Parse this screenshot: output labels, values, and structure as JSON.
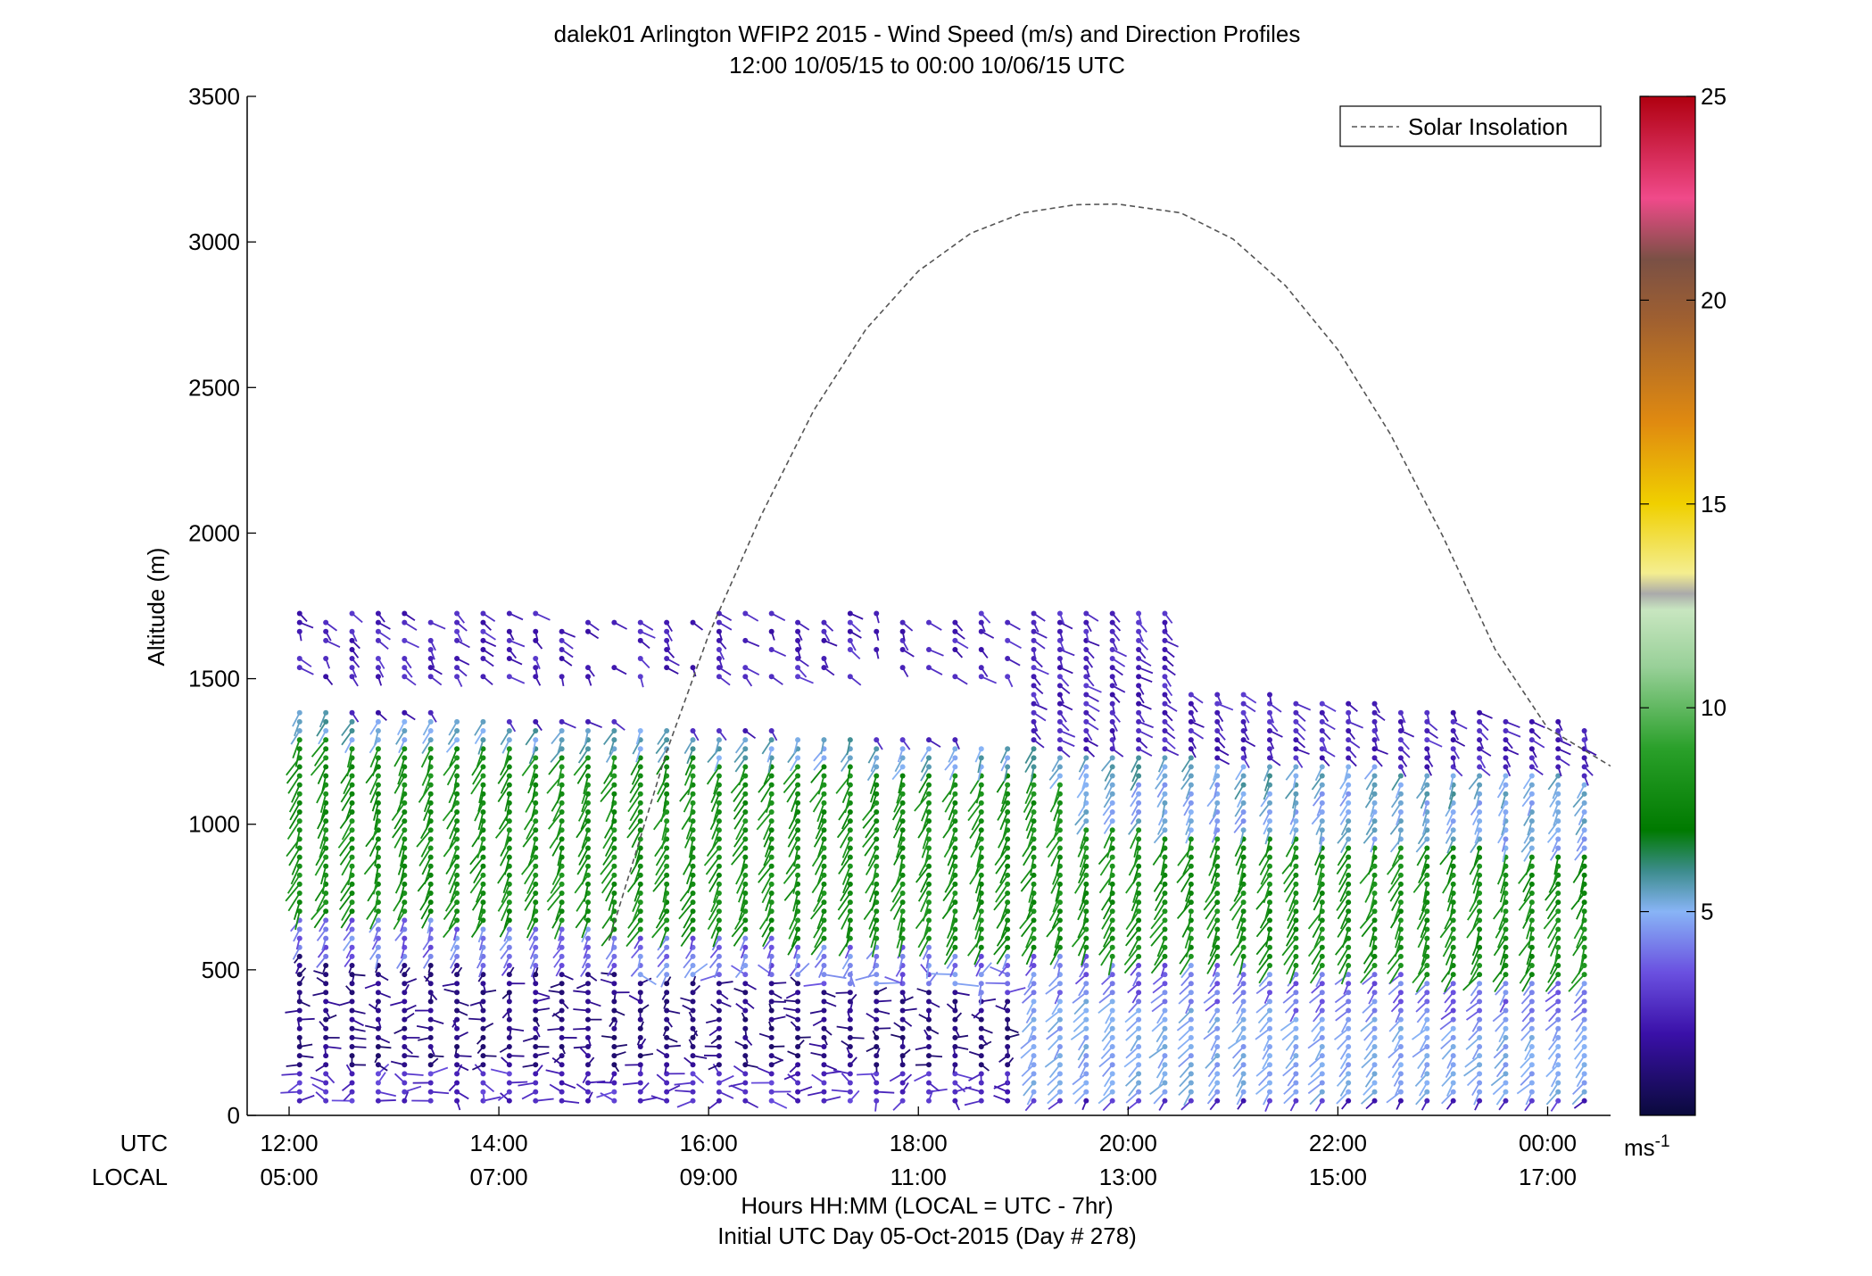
{
  "chart_data": {
    "type": "scatter",
    "title": "dalek01 Arlington WFIP2 2015 - Wind Speed (m/s) and Direction Profiles",
    "subtitle": "12:00 10/05/15 to 00:00 10/06/15  UTC",
    "ylabel": "Altitude (m)",
    "xlabel": "Hours HH:MM  (LOCAL = UTC - 7hr)",
    "xlabel2": "Initial UTC Day 05-Oct-2015 (Day # 278)",
    "row_labels": {
      "utc": "UTC",
      "local": "LOCAL"
    },
    "xlim_hours_utc": [
      11.6,
      24.6
    ],
    "ylim": [
      0,
      3500
    ],
    "y_ticks": [
      0,
      500,
      1000,
      1500,
      2000,
      2500,
      3000,
      3500
    ],
    "y_tick_labels": [
      "0",
      "500",
      "1000",
      "1500",
      "2000",
      "2500",
      "3000",
      "3500"
    ],
    "x_ticks_hours_utc": [
      12,
      14,
      16,
      18,
      20,
      22,
      24
    ],
    "x_tick_labels_utc": [
      "12:00",
      "14:00",
      "16:00",
      "18:00",
      "20:00",
      "22:00",
      "00:00"
    ],
    "x_tick_labels_local": [
      "05:00",
      "07:00",
      "09:00",
      "11:00",
      "13:00",
      "15:00",
      "17:00"
    ],
    "legend": {
      "entries": [
        "Solar Insolation"
      ],
      "position": "top-right"
    },
    "colorbar": {
      "range": [
        0,
        25
      ],
      "ticks": [
        5,
        10,
        15,
        20,
        25
      ],
      "tick_labels": [
        "5",
        "10",
        "15",
        "20",
        "25"
      ],
      "unit_label": "ms",
      "unit_exponent": "-1",
      "stops": [
        {
          "v": 0,
          "c": "#0a0a3c"
        },
        {
          "v": 2,
          "c": "#3a10a8"
        },
        {
          "v": 3.5,
          "c": "#6a50e0"
        },
        {
          "v": 5,
          "c": "#88b4f6"
        },
        {
          "v": 6,
          "c": "#3c8c8c"
        },
        {
          "v": 7,
          "c": "#007a00"
        },
        {
          "v": 9,
          "c": "#2aa02a"
        },
        {
          "v": 11,
          "c": "#98d098"
        },
        {
          "v": 12.4,
          "c": "#c8e6c0"
        },
        {
          "v": 12.8,
          "c": "#aaaaaa"
        },
        {
          "v": 13.3,
          "c": "#f4ee90"
        },
        {
          "v": 15,
          "c": "#f0d000"
        },
        {
          "v": 17,
          "c": "#e08a10"
        },
        {
          "v": 19.5,
          "c": "#a06030"
        },
        {
          "v": 21,
          "c": "#7a5045"
        },
        {
          "v": 22.5,
          "c": "#f04a8a"
        },
        {
          "v": 25,
          "c": "#b00010"
        }
      ]
    },
    "solar_insolation": {
      "description_units": "hours UTC vs altitude-axis units",
      "peak_hour_utc": 19.9,
      "peak_altitude": 3130,
      "points": [
        {
          "x": 15.05,
          "y": 600
        },
        {
          "x": 15.6,
          "y": 1250
        },
        {
          "x": 16.0,
          "y": 1650
        },
        {
          "x": 16.5,
          "y": 2060
        },
        {
          "x": 17.0,
          "y": 2420
        },
        {
          "x": 17.5,
          "y": 2700
        },
        {
          "x": 18.0,
          "y": 2900
        },
        {
          "x": 18.5,
          "y": 3030
        },
        {
          "x": 19.0,
          "y": 3100
        },
        {
          "x": 19.5,
          "y": 3128
        },
        {
          "x": 19.9,
          "y": 3130
        },
        {
          "x": 20.5,
          "y": 3100
        },
        {
          "x": 21.0,
          "y": 3010
        },
        {
          "x": 21.5,
          "y": 2850
        },
        {
          "x": 22.0,
          "y": 2630
        },
        {
          "x": 22.5,
          "y": 2340
        },
        {
          "x": 23.0,
          "y": 1990
        },
        {
          "x": 23.5,
          "y": 1600
        },
        {
          "x": 24.0,
          "y": 1330
        },
        {
          "x": 24.6,
          "y": 1200
        }
      ]
    },
    "wind_profiles": {
      "time_start_hours_utc": 12.1,
      "time_end_hours_utc": 24.85,
      "time_step_hours": 0.25,
      "altitude_start": 50,
      "altitude_step": 31,
      "top_green_layer_altitude": 1330,
      "clear_sky_layer": [
        1500,
        1800
      ],
      "note": "Barbs: color = wind speed in m/s; stem points toward direction"
    },
    "speed_regimes": [
      {
        "altitude_min": 0,
        "altitude_max": 150,
        "speed": 2.0,
        "dir_deg": 250
      },
      {
        "altitude_min": 150,
        "altitude_max": 500,
        "speed": 1.0,
        "dir_deg": 200
      },
      {
        "altitude_min": 500,
        "altitude_max": 700,
        "speed": 2.5,
        "dir_deg": 260
      },
      {
        "altitude_min": 700,
        "altitude_max": 1330,
        "speed": 8.0,
        "dir_deg": 250
      },
      {
        "altitude_min": 1330,
        "altitude_max": 1850,
        "speed": 2.5,
        "dir_deg": 300
      }
    ]
  }
}
